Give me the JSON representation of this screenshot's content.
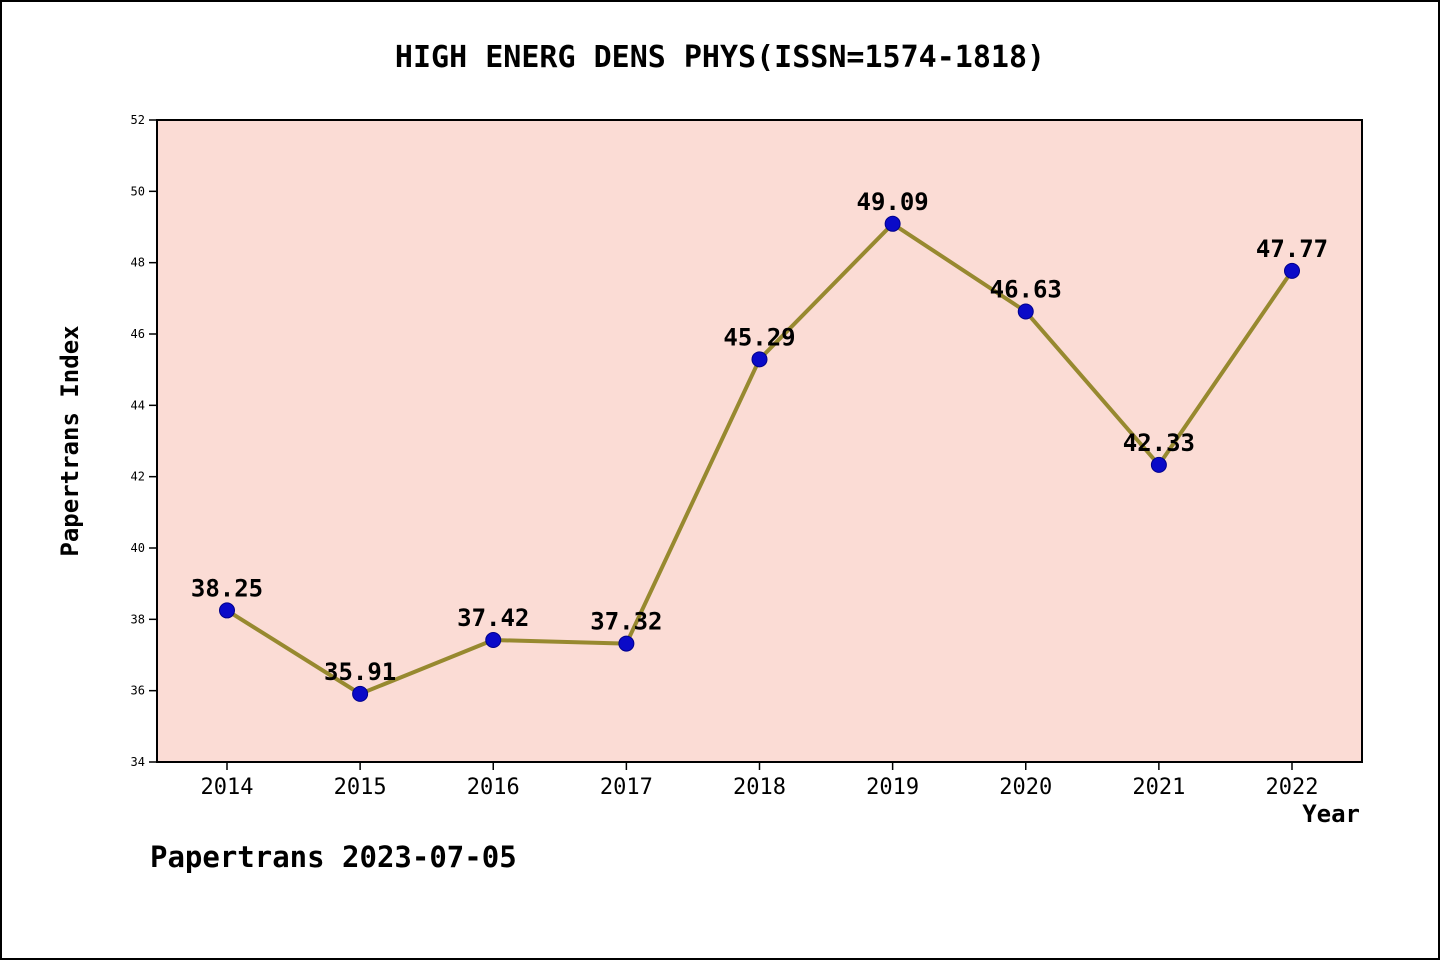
{
  "figure": {
    "watermark": "Papertrans 2023-07-05"
  },
  "chart_data": {
    "type": "line",
    "title": "HIGH ENERG DENS PHYS(ISSN=1574-1818)",
    "categories": [
      "2014",
      "2015",
      "2016",
      "2017",
      "2018",
      "2019",
      "2020",
      "2021",
      "2022"
    ],
    "values": [
      38.25,
      35.91,
      37.42,
      37.32,
      45.29,
      49.09,
      46.63,
      42.33,
      47.77
    ],
    "point_labels": [
      "38.25",
      "35.91",
      "37.42",
      "37.32",
      "45.29",
      "49.09",
      "46.63",
      "42.33",
      "47.77"
    ],
    "xlabel": "Year",
    "ylabel": "Papertrans Index",
    "ylim": [
      34,
      52
    ],
    "yticks": [
      34,
      36,
      38,
      40,
      42,
      44,
      46,
      48,
      50,
      52
    ],
    "grid": false,
    "legend": "none",
    "colors": {
      "plot_background": "#fbdcd5",
      "outer_background": "#ffffff",
      "line": "#97892f",
      "marker_fill": "#0a0ac8",
      "marker_edge": "#00008b",
      "axis": "#000000",
      "text": "#000000"
    }
  }
}
